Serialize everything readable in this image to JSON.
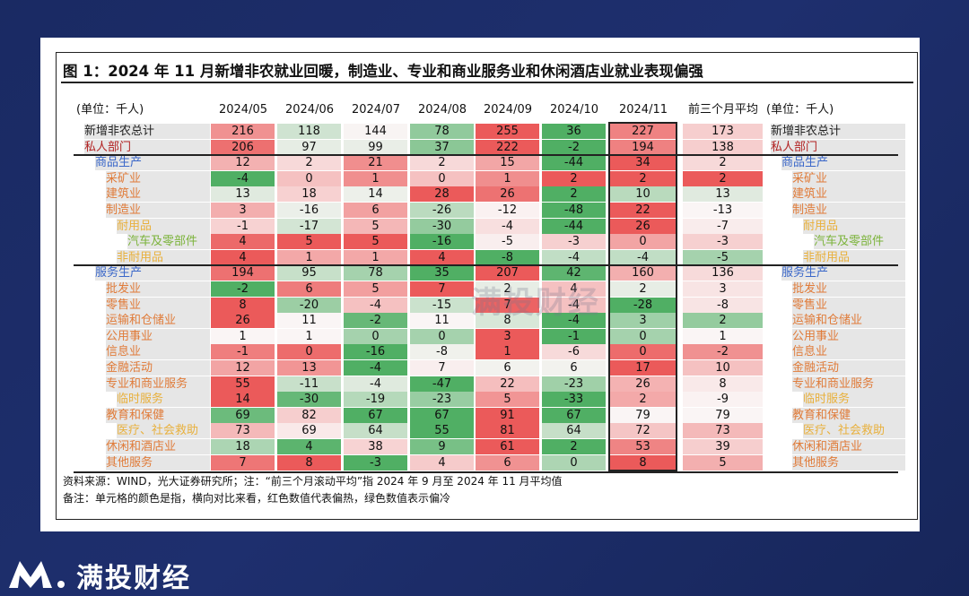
{
  "header": {
    "title": "图 1：2024 年 11 月新增非农就业回暖，制造业、专业和商业服务业和休闲酒店业就业表现偏强"
  },
  "table": {
    "columns": [
      "(单位：千人)",
      "2024/05",
      "2024/06",
      "2024/07",
      "2024/08",
      "2024/09",
      "2024/10",
      "2024/11",
      "前三个月平均",
      "(单位：千人)"
    ],
    "rows": [
      [
        "新增非农总计",
        216,
        118,
        144,
        78,
        255,
        36,
        227,
        173,
        "新增非农总计"
      ],
      [
        "私人部门",
        206,
        97,
        99,
        37,
        222,
        -2,
        194,
        138,
        "私人部门"
      ],
      [
        "商品生产",
        12,
        2,
        21,
        2,
        15,
        -44,
        34,
        2,
        "商品生产"
      ],
      [
        "采矿业",
        -4,
        0,
        1,
        0,
        1,
        2,
        2,
        2,
        "采矿业"
      ],
      [
        "建筑业",
        13,
        18,
        14,
        28,
        26,
        2,
        10,
        13,
        "建筑业"
      ],
      [
        "制造业",
        3,
        -16,
        6,
        -26,
        -12,
        -48,
        22,
        -13,
        "制造业"
      ],
      [
        "耐用品",
        -1,
        -17,
        5,
        -30,
        -4,
        -44,
        26,
        -7,
        "耐用品"
      ],
      [
        "汽车及零部件",
        4,
        5,
        5,
        -16,
        -5,
        -3,
        0,
        -3,
        "汽车及零部件"
      ],
      [
        "非耐用品",
        4,
        1,
        1,
        4,
        -8,
        -4,
        -4,
        -5,
        "非耐用品"
      ],
      [
        "服务生产",
        194,
        95,
        78,
        35,
        207,
        42,
        160,
        136,
        "服务生产"
      ],
      [
        "批发业",
        -2,
        6,
        5,
        7,
        2,
        4,
        2,
        3,
        "批发业"
      ],
      [
        "零售业",
        8,
        -20,
        -4,
        -15,
        7,
        -4,
        -28,
        -8,
        "零售业"
      ],
      [
        "运输和仓储业",
        26,
        11,
        -2,
        11,
        8,
        -4,
        3,
        2,
        "运输和仓储业"
      ],
      [
        "公用事业",
        1,
        1,
        0,
        0,
        3,
        -1,
        0,
        1,
        "公用事业"
      ],
      [
        "信息业",
        -1,
        0,
        -16,
        -8,
        1,
        -6,
        0,
        -2,
        "信息业"
      ],
      [
        "金融活动",
        12,
        13,
        -4,
        7,
        6,
        6,
        17,
        10,
        "金融活动"
      ],
      [
        "专业和商业服务",
        55,
        -11,
        -4,
        -47,
        22,
        -23,
        26,
        8,
        "专业和商业服务"
      ],
      [
        "临时服务",
        14,
        -30,
        -19,
        -23,
        5,
        -33,
        2,
        -9,
        "临时服务"
      ],
      [
        "教育和保健",
        69,
        82,
        67,
        67,
        91,
        67,
        79,
        79,
        "教育和保健"
      ],
      [
        "医疗、社会救助",
        73,
        69,
        64,
        55,
        81,
        64,
        72,
        73,
        "医疗、社会救助"
      ],
      [
        "休闲和酒店业",
        18,
        4,
        38,
        9,
        61,
        2,
        53,
        39,
        "休闲和酒店业"
      ],
      [
        "其他服务",
        7,
        8,
        -3,
        4,
        6,
        0,
        8,
        5,
        "其他服务"
      ]
    ]
  },
  "notes": [
    "资料来源：WIND，光大证券研究所；注：“前三个月滚动平均”指 2024 年 9 月至 2024 年 11 月平均值",
    "备注：单元格的颜色是指，横向对比来看，红色数值代表偏热，绿色数值表示偏冷"
  ],
  "watermark": "满投财经",
  "logo": "满投财经"
}
